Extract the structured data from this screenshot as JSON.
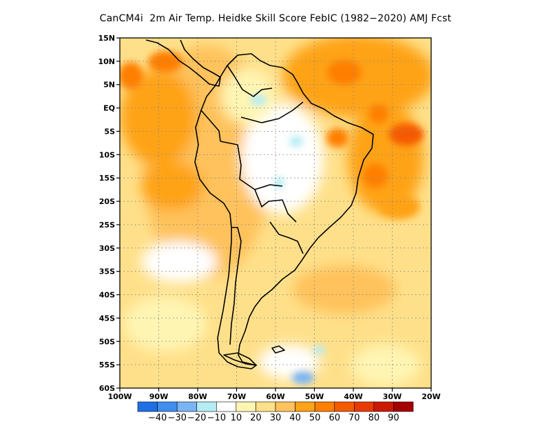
{
  "title": "CanCM4i  2m Air Temp. Heidke Skill Score FebIC (1982−2020) AMJ Fcst",
  "map": {
    "lon_range": [
      -100,
      -20
    ],
    "lat_range": [
      -60,
      15
    ],
    "lat_ticks": [
      "15N",
      "10N",
      "5N",
      "EQ",
      "5S",
      "10S",
      "15S",
      "20S",
      "25S",
      "30S",
      "35S",
      "40S",
      "45S",
      "50S",
      "55S",
      "60S"
    ],
    "lon_ticks": [
      "100W",
      "90W",
      "80W",
      "70W",
      "60W",
      "50W",
      "40W",
      "30W",
      "20W"
    ],
    "grid": "dotted every 5 degrees"
  },
  "colorbar": {
    "colors": [
      "#1f6fe6",
      "#3f8ef0",
      "#79b4f5",
      "#b6ecf3",
      "#ffffff",
      "#fff5b3",
      "#ffe08a",
      "#ffc25c",
      "#ffa319",
      "#ff7f00",
      "#f55a00",
      "#e83a00",
      "#cc1a00",
      "#a50000"
    ],
    "labels": [
      "−40",
      "−30",
      "−20",
      "−10",
      "10",
      "20",
      "30",
      "40",
      "50",
      "60",
      "70",
      "80",
      "90"
    ]
  }
}
